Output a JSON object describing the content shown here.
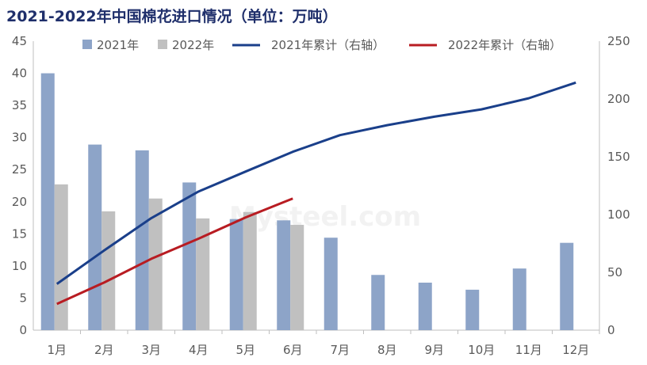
{
  "chart_data": {
    "type": "bar",
    "title": "2021-2022年中国棉花进口情况（单位：万吨）",
    "categories": [
      "1月",
      "2月",
      "3月",
      "4月",
      "5月",
      "6月",
      "7月",
      "8月",
      "9月",
      "10月",
      "11月",
      "12月"
    ],
    "series": [
      {
        "name": "2021年",
        "kind": "bar",
        "axis": "left",
        "color": "#8da4c8",
        "values": [
          40.0,
          28.9,
          28.0,
          23.0,
          17.3,
          17.1,
          14.4,
          8.6,
          7.4,
          6.3,
          9.6,
          13.6
        ]
      },
      {
        "name": "2022年",
        "kind": "bar",
        "axis": "left",
        "color": "#c0c0c0",
        "values": [
          22.7,
          18.5,
          20.5,
          17.4,
          18.4,
          16.4,
          null,
          null,
          null,
          null,
          null,
          null
        ]
      },
      {
        "name": "2021年累计（右轴）",
        "kind": "line",
        "axis": "right",
        "color": "#1a3f8a",
        "values": [
          40.0,
          68.9,
          96.9,
          119.9,
          137.2,
          154.3,
          168.7,
          177.3,
          184.7,
          191.0,
          200.6,
          214.2
        ]
      },
      {
        "name": "2022年累计（右轴）",
        "kind": "line",
        "axis": "right",
        "color": "#b81c22",
        "values": [
          22.7,
          41.2,
          61.7,
          79.1,
          97.5,
          113.9,
          null,
          null,
          null,
          null,
          null,
          null
        ]
      }
    ],
    "ylim_left": [
      0,
      45
    ],
    "yticks_left": [
      0,
      5,
      10,
      15,
      20,
      25,
      30,
      35,
      40,
      45
    ],
    "ylim_right": [
      0,
      250
    ],
    "yticks_right": [
      0,
      50,
      100,
      150,
      200,
      250
    ],
    "legend_position": "top",
    "grid": false
  },
  "watermark": "Mysteel.com"
}
